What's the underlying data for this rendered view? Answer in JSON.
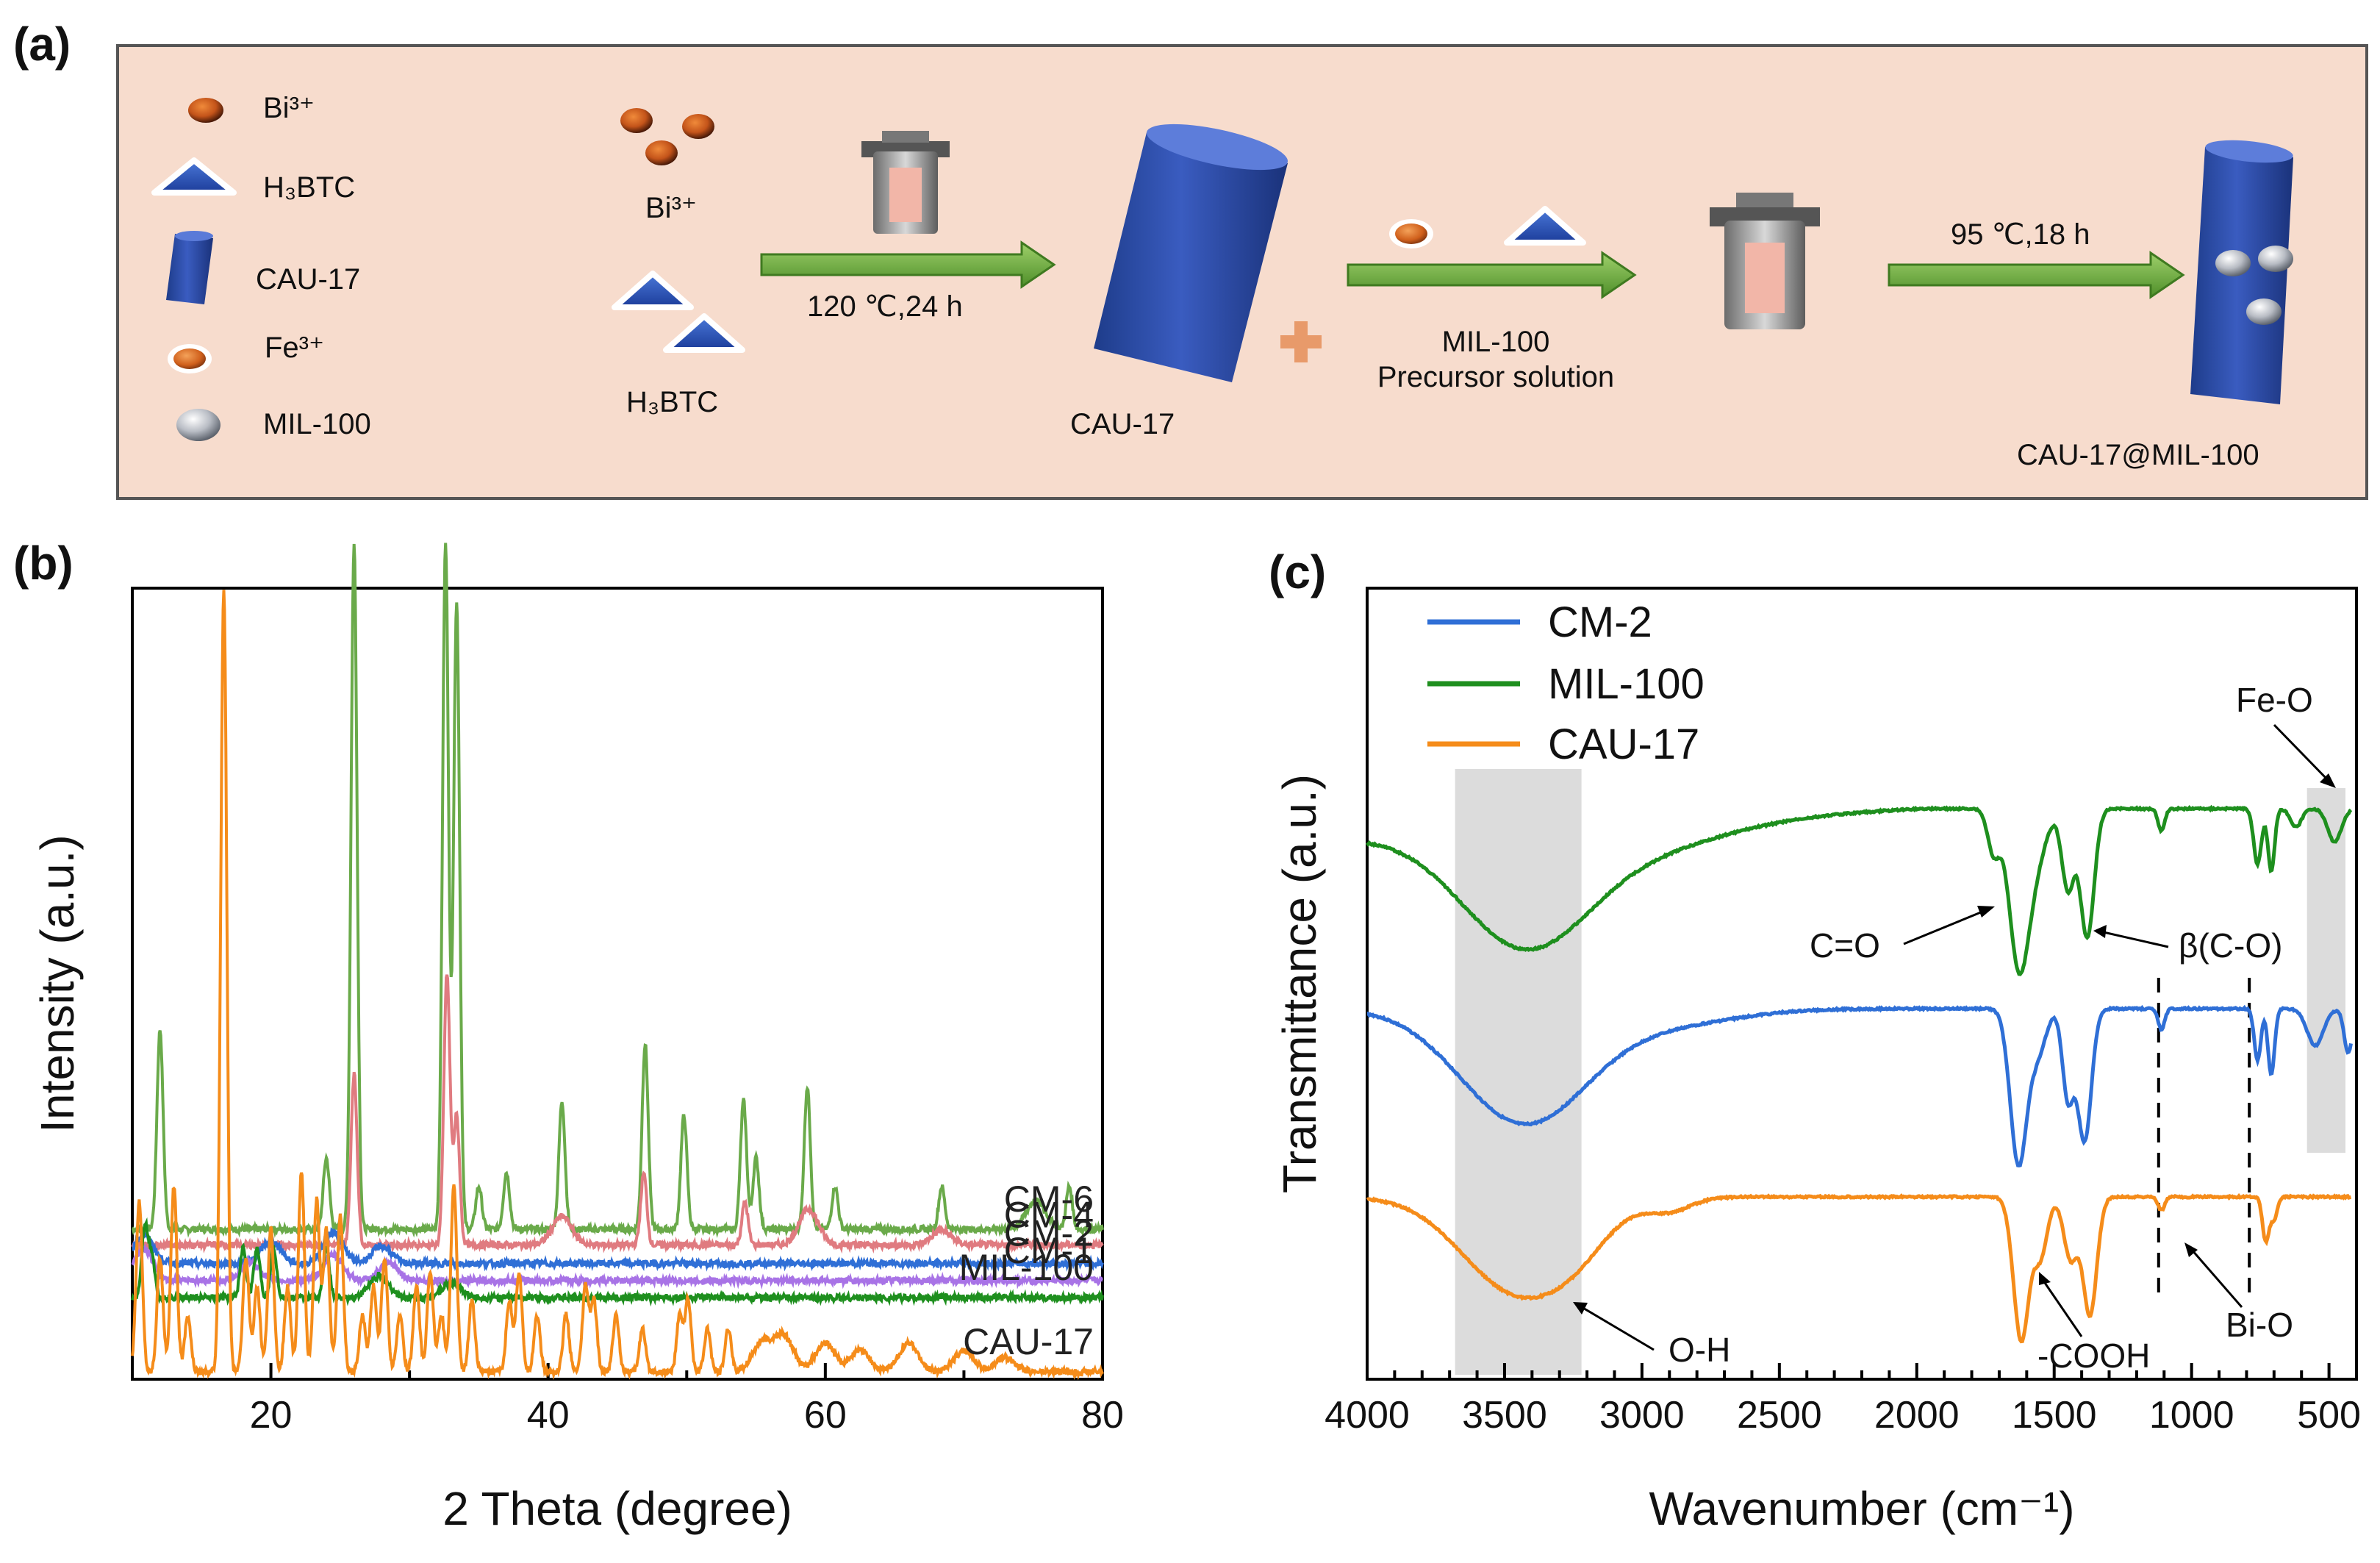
{
  "panel_a": {
    "label": "(a)",
    "legend": {
      "bi": "Bi³⁺",
      "h3btc": "H₃BTC",
      "cau17": "CAU-17",
      "fe": "Fe³⁺",
      "mil100": "MIL-100"
    },
    "flow": {
      "reactant_bi": "Bi³⁺",
      "reactant_h3btc": "H₃BTC",
      "step1": "120 ℃,24 h",
      "product1": "CAU-17",
      "precursor_line1": "MIL-100",
      "precursor_line2": "Precursor solution",
      "step2": "95 ℃,18 h",
      "final": "CAU-17@MIL-100"
    }
  },
  "chart_data": [
    {
      "panel": "(b)",
      "type": "line",
      "xlabel": "2 Theta (degree)",
      "ylabel": "Intensity (a.u.)",
      "xlim": [
        10,
        80
      ],
      "xticks": [
        20,
        40,
        60,
        80
      ],
      "series": [
        {
          "name": "CM-6",
          "color": "#6aaa4a",
          "baseline": 10,
          "peaks": [
            [
              12,
              14
            ],
            [
              24,
              5
            ],
            [
              26,
              48
            ],
            [
              32.6,
              48
            ],
            [
              33.4,
              44
            ],
            [
              35,
              3
            ],
            [
              37,
              4
            ],
            [
              41,
              9
            ],
            [
              47,
              13
            ],
            [
              49.8,
              8
            ],
            [
              54.1,
              9
            ],
            [
              55,
              5
            ],
            [
              58.7,
              10
            ],
            [
              60.7,
              3
            ],
            [
              68.4,
              3
            ],
            [
              75.2,
              2
            ],
            [
              77.6,
              3
            ]
          ]
        },
        {
          "name": "CM-4",
          "color": "#e07b80",
          "baseline": 8.9,
          "peaks": [
            [
              26,
              12
            ],
            [
              32.7,
              19
            ],
            [
              33.4,
              9
            ],
            [
              41,
              2
            ],
            [
              46.9,
              5
            ],
            [
              54.2,
              3
            ],
            [
              58.8,
              2.5
            ],
            [
              68.4,
              1
            ]
          ]
        },
        {
          "name": "CM-2",
          "color": "#2f6fd6",
          "baseline": 7.6,
          "peaks": [
            [
              10.8,
              2
            ],
            [
              20,
              1.6
            ],
            [
              24.5,
              2.2
            ],
            [
              28,
              1.2
            ]
          ]
        },
        {
          "name": "CM-1",
          "color": "#a873e6",
          "baseline": 6.4,
          "peaks": [
            [
              10.8,
              2.2
            ],
            [
              18.5,
              1.3
            ],
            [
              24.5,
              1.8
            ],
            [
              28.5,
              1.2
            ]
          ]
        },
        {
          "name": "MIL-100",
          "color": "#1e8f1e",
          "baseline": 5.2,
          "peaks": [
            [
              10.9,
              5
            ],
            [
              11.4,
              3
            ],
            [
              18,
              3.5
            ],
            [
              19,
              3.5
            ],
            [
              20.2,
              3.5
            ],
            [
              24,
              3.5
            ],
            [
              27.8,
              1.5
            ],
            [
              33,
              1
            ]
          ]
        },
        {
          "name": "CAU-17",
          "color": "#f58c1a",
          "baseline": 0,
          "peaks": [
            [
              10.5,
              12
            ],
            [
              12,
              8
            ],
            [
              13,
              13
            ],
            [
              14,
              4
            ],
            [
              16.6,
              55
            ],
            [
              18.2,
              8
            ],
            [
              19,
              6
            ],
            [
              20,
              10
            ],
            [
              21.2,
              6
            ],
            [
              22.2,
              14
            ],
            [
              23.3,
              12
            ],
            [
              24,
              10
            ],
            [
              25,
              11
            ],
            [
              26.6,
              4
            ],
            [
              27.4,
              6
            ],
            [
              28.2,
              8
            ],
            [
              29.3,
              4
            ],
            [
              30.5,
              6
            ],
            [
              31.5,
              7
            ],
            [
              32.3,
              4
            ],
            [
              33.2,
              13
            ],
            [
              34.5,
              5
            ],
            [
              37.2,
              5
            ],
            [
              37.9,
              7
            ],
            [
              39.2,
              4
            ],
            [
              41.3,
              4
            ],
            [
              42.7,
              6
            ],
            [
              43.3,
              5
            ],
            [
              44.9,
              4
            ],
            [
              46.8,
              3
            ],
            [
              49.5,
              4
            ],
            [
              50.1,
              5
            ],
            [
              51.5,
              3
            ],
            [
              53,
              3
            ],
            [
              55.4,
              2
            ],
            [
              57,
              2.5
            ],
            [
              60,
              2
            ],
            [
              62.5,
              1.5
            ],
            [
              66,
              2
            ],
            [
              70,
              1.5
            ],
            [
              73,
              1
            ]
          ]
        }
      ]
    },
    {
      "panel": "(c)",
      "type": "line",
      "xlabel": "Wavenumber (cm⁻¹)",
      "ylabel": "Transmittance (a.u.)",
      "xlim": [
        4000,
        400
      ],
      "xticks": [
        4000,
        3500,
        3000,
        2500,
        2000,
        1500,
        1000,
        500
      ],
      "series": [
        {
          "name": "CM-2",
          "color": "#2f6fd6",
          "offset": 0
        },
        {
          "name": "MIL-100",
          "color": "#1e8f1e",
          "offset": 0
        },
        {
          "name": "CAU-17",
          "color": "#f58c1a",
          "offset": 0
        }
      ],
      "highlight_regions": [
        [
          3680,
          3220
        ],
        [
          580,
          440
        ]
      ],
      "dashed_lines": [
        1120,
        790
      ],
      "annotations": {
        "oh": "O-H",
        "co": "C=O",
        "beta": "β(C-O)",
        "cooh": "-COOH",
        "bio": "Bi-O",
        "feo": "Fe-O"
      }
    }
  ]
}
